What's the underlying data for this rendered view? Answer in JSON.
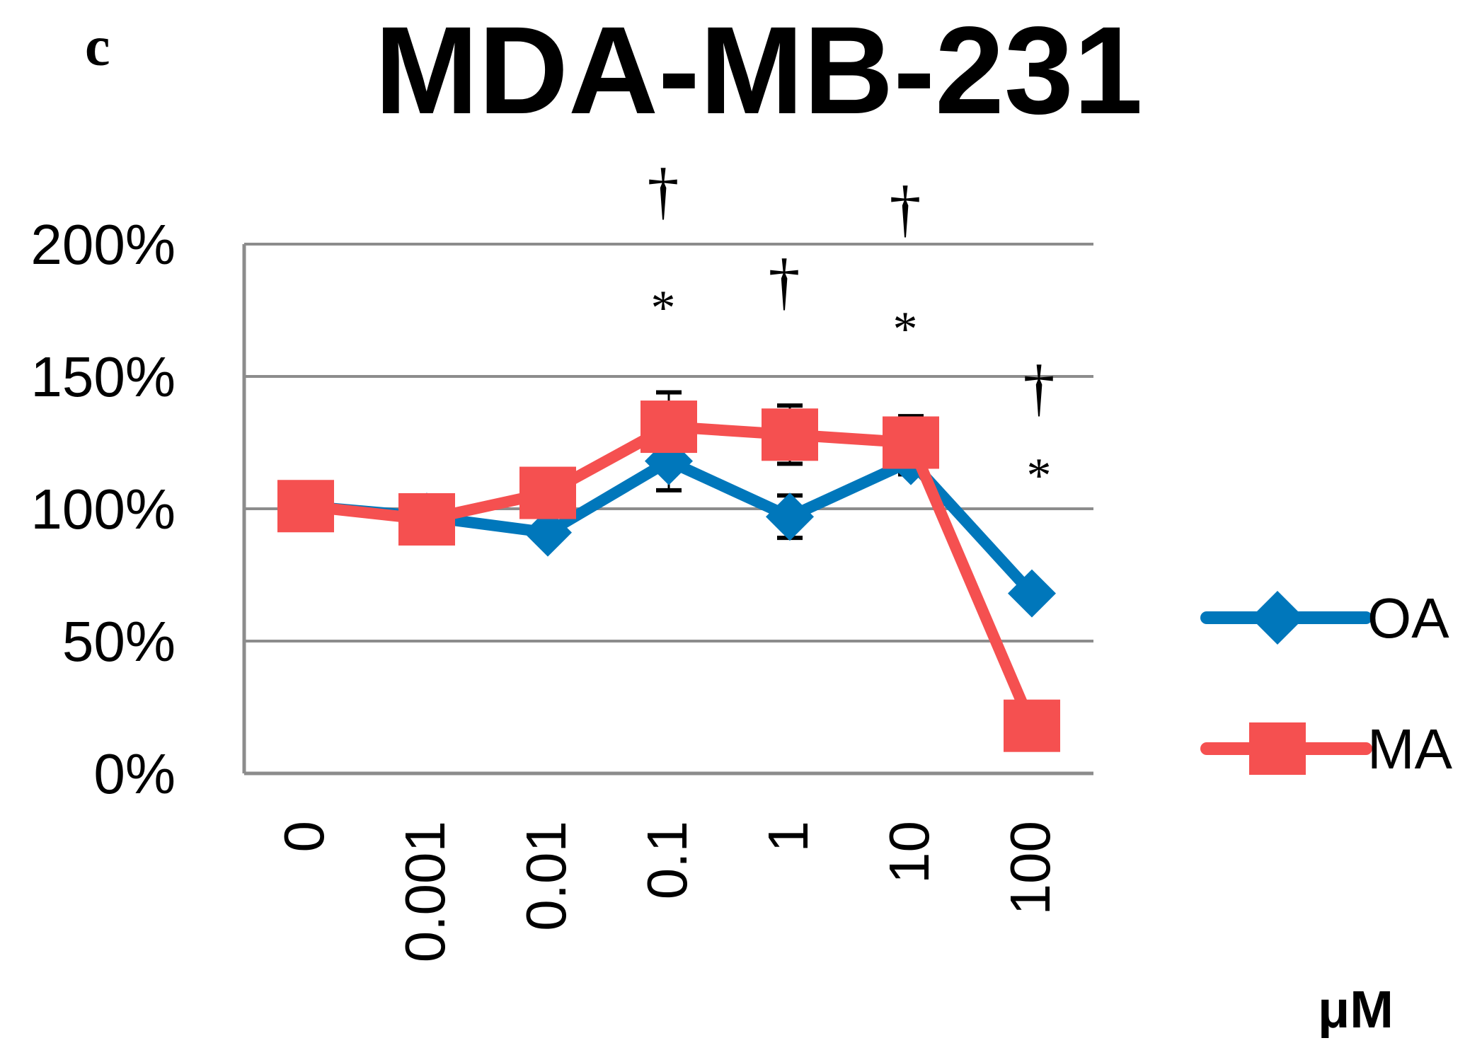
{
  "panel_label": "c",
  "chart_data": {
    "type": "line",
    "title": "MDA-MB-231",
    "xlabel": "μM",
    "ylabel": "",
    "categories": [
      "0",
      "0.001",
      "0.01",
      "0.1",
      "1",
      "10",
      "100"
    ],
    "y_ticks": [
      "0%",
      "50%",
      "100%",
      "150%",
      "200%"
    ],
    "ylim": [
      0,
      200
    ],
    "y_unit": "%",
    "grid": true,
    "legend_position": "right",
    "series": [
      {
        "name": "OA",
        "color": "#0077BB",
        "marker": "diamond",
        "values": [
          101,
          97,
          91,
          118,
          97,
          118,
          68
        ],
        "error_values": [
          0,
          0,
          0,
          11,
          8,
          5,
          0
        ]
      },
      {
        "name": "MA",
        "color": "#F55050",
        "marker": "square",
        "values": [
          101,
          96,
          106,
          131,
          128,
          125,
          18
        ],
        "error_values": [
          0,
          0,
          0,
          13,
          11,
          10,
          0
        ]
      }
    ],
    "annotations": [
      {
        "category": "0.1",
        "symbols": [
          "†",
          "*"
        ]
      },
      {
        "category": "1",
        "symbols": [
          "†"
        ]
      },
      {
        "category": "10",
        "symbols": [
          "†",
          "*"
        ]
      },
      {
        "category": "100",
        "symbols": [
          "†",
          "*"
        ]
      }
    ]
  }
}
